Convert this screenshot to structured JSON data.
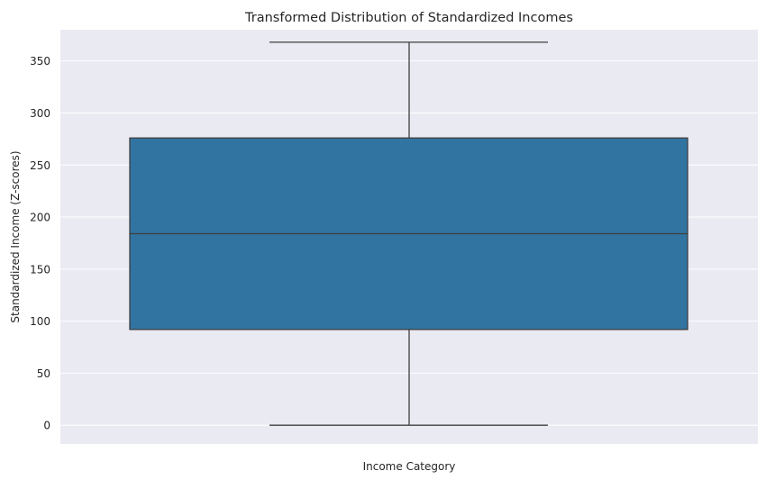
{
  "chart_data": {
    "type": "box",
    "title": "Transformed Distribution of Standardized Incomes",
    "xlabel": "Income Category",
    "ylabel": "Standardized Income (Z-scores)",
    "ylim": [
      -18,
      380
    ],
    "yticks": [
      0,
      50,
      100,
      150,
      200,
      250,
      300,
      350
    ],
    "grid": true,
    "box": {
      "whisker_low": 0,
      "q1": 92,
      "median": 184,
      "q3": 276,
      "whisker_high": 368
    },
    "colors": {
      "background": "#eaeaf2",
      "box_fill": "#3274a1",
      "line": "#3f3f3f",
      "grid": "#ffffff"
    }
  }
}
